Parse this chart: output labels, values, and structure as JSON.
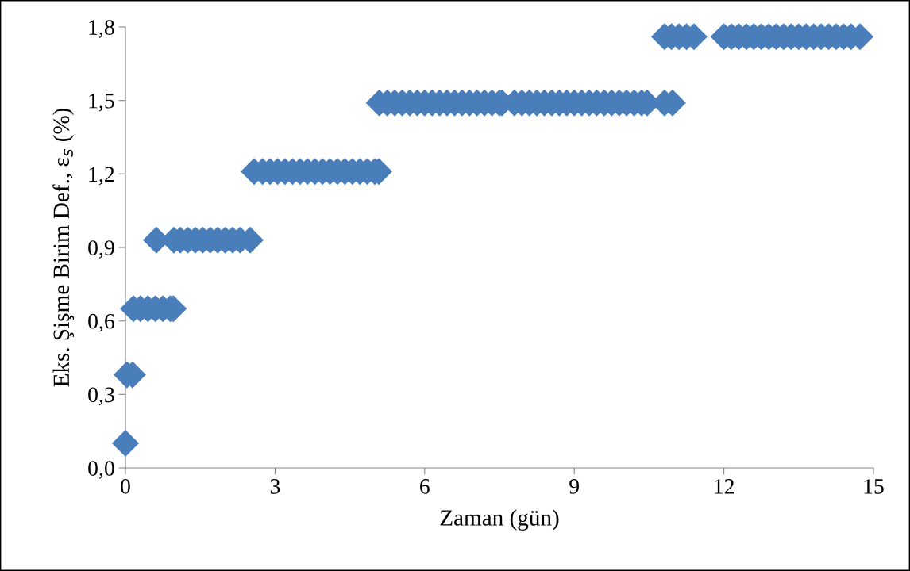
{
  "chart_data": {
    "type": "scatter",
    "xlabel": "Zaman (gün)",
    "ylabel": "Eks. Şişme Birim Def., ε$_{s}$ (%)",
    "xlim": [
      0,
      15
    ],
    "xticks": [
      0,
      3,
      6,
      9,
      12,
      15
    ],
    "ylim": [
      0,
      1.8
    ],
    "yticks": [
      {
        "value": 0,
        "label": "0,0"
      },
      {
        "value": 0.3,
        "label": "0,3"
      },
      {
        "value": 0.6,
        "label": "0,6"
      },
      {
        "value": 0.9,
        "label": "0,9"
      },
      {
        "value": 1.2,
        "label": "1,2"
      },
      {
        "value": 1.5,
        "label": "1,5"
      },
      {
        "value": 1.8,
        "label": "1,8"
      }
    ],
    "grid": false,
    "marker": "diamond",
    "series": [
      {
        "color": "#4a7ebb",
        "x": [
          0,
          0.03,
          0.14,
          0.16,
          0.3,
          0.45,
          0.6,
          0.75,
          0.9,
          0.96,
          0.62,
          0.97,
          1.1,
          1.25,
          1.4,
          1.55,
          1.7,
          1.85,
          2.0,
          2.15,
          2.3,
          2.5,
          2.58,
          2.75,
          2.9,
          3.05,
          3.2,
          3.35,
          3.5,
          3.65,
          3.8,
          3.95,
          4.1,
          4.25,
          4.4,
          4.55,
          4.7,
          4.85,
          5.0,
          5.08,
          5.09,
          5.25,
          5.4,
          5.55,
          5.7,
          5.85,
          6.0,
          6.15,
          6.3,
          6.45,
          6.6,
          6.75,
          6.9,
          7.05,
          7.2,
          7.35,
          7.5,
          7.55,
          7.8,
          7.95,
          8.1,
          8.25,
          8.4,
          8.55,
          8.7,
          8.85,
          9.0,
          9.15,
          9.3,
          9.45,
          9.6,
          9.75,
          9.9,
          10.05,
          10.2,
          10.35,
          10.46,
          10.81,
          10.97,
          10.81,
          10.95,
          11.1,
          11.25,
          11.4,
          12.0,
          12.15,
          12.3,
          12.45,
          12.6,
          12.75,
          12.9,
          13.05,
          13.2,
          13.35,
          13.5,
          13.65,
          13.8,
          13.95,
          14.1,
          14.25,
          14.4,
          14.55,
          14.73
        ],
        "values": [
          0.1,
          0.38,
          0.38,
          0.65,
          0.65,
          0.65,
          0.65,
          0.65,
          0.65,
          0.65,
          0.93,
          0.93,
          0.93,
          0.93,
          0.93,
          0.93,
          0.93,
          0.93,
          0.93,
          0.93,
          0.93,
          0.93,
          1.21,
          1.21,
          1.21,
          1.21,
          1.21,
          1.21,
          1.21,
          1.21,
          1.21,
          1.21,
          1.21,
          1.21,
          1.21,
          1.21,
          1.21,
          1.21,
          1.21,
          1.21,
          1.49,
          1.49,
          1.49,
          1.49,
          1.49,
          1.49,
          1.49,
          1.49,
          1.49,
          1.49,
          1.49,
          1.49,
          1.49,
          1.49,
          1.49,
          1.49,
          1.49,
          1.49,
          1.49,
          1.49,
          1.49,
          1.49,
          1.49,
          1.49,
          1.49,
          1.49,
          1.49,
          1.49,
          1.49,
          1.49,
          1.49,
          1.49,
          1.49,
          1.49,
          1.49,
          1.49,
          1.49,
          1.49,
          1.49,
          1.76,
          1.76,
          1.76,
          1.76,
          1.76,
          1.76,
          1.76,
          1.76,
          1.76,
          1.76,
          1.76,
          1.76,
          1.76,
          1.76,
          1.76,
          1.76,
          1.76,
          1.76,
          1.76,
          1.76,
          1.76,
          1.76,
          1.76,
          1.76
        ]
      }
    ]
  }
}
